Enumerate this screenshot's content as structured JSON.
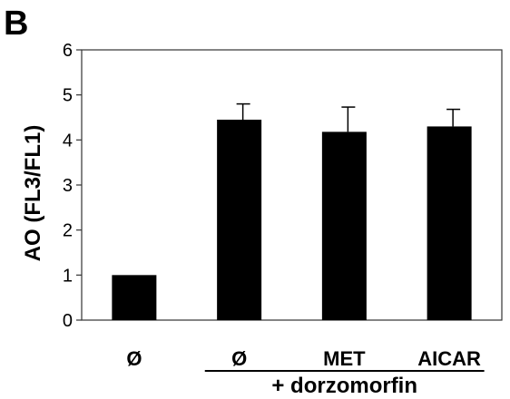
{
  "panel_label": "B",
  "chart_data": {
    "type": "bar",
    "categories": [
      "Ø",
      "Ø",
      "MET",
      "AICAR"
    ],
    "values": [
      1.0,
      4.45,
      4.18,
      4.3
    ],
    "errors": [
      0,
      0.35,
      0.55,
      0.38
    ],
    "ylabel": "AO (FL3/FL1)",
    "xlabel": "",
    "ylim": [
      0,
      6
    ],
    "yticks": [
      0,
      1,
      2,
      3,
      4,
      5,
      6
    ],
    "grid": false,
    "bar_color": "#000000",
    "group_annotation": {
      "label": "+ dorzomorfin",
      "categories": [
        "Ø",
        "MET",
        "AICAR"
      ]
    }
  }
}
